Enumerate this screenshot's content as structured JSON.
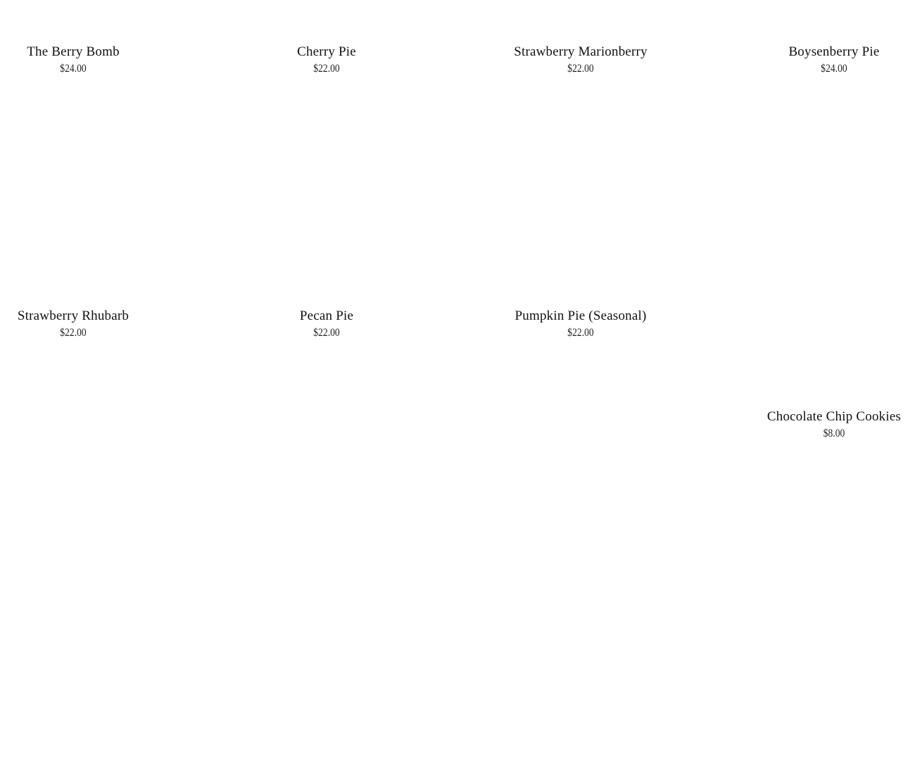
{
  "products": [
    {
      "name": "The Berry Bomb",
      "price": "$24.00"
    },
    {
      "name": "Cherry Pie",
      "price": "$22.00"
    },
    {
      "name": "Strawberry Marionberry",
      "price": "$22.00"
    },
    {
      "name": "Boysenberry Pie",
      "price": "$24.00"
    },
    {
      "name": "Strawberry Rhubarb",
      "price": "$22.00"
    },
    {
      "name": "Pecan Pie",
      "price": "$22.00"
    },
    {
      "name": "Pumpkin Pie (Seasonal)",
      "price": "$22.00"
    },
    {
      "name": "Chocolate Chip Cookies",
      "price": "$8.00"
    }
  ]
}
